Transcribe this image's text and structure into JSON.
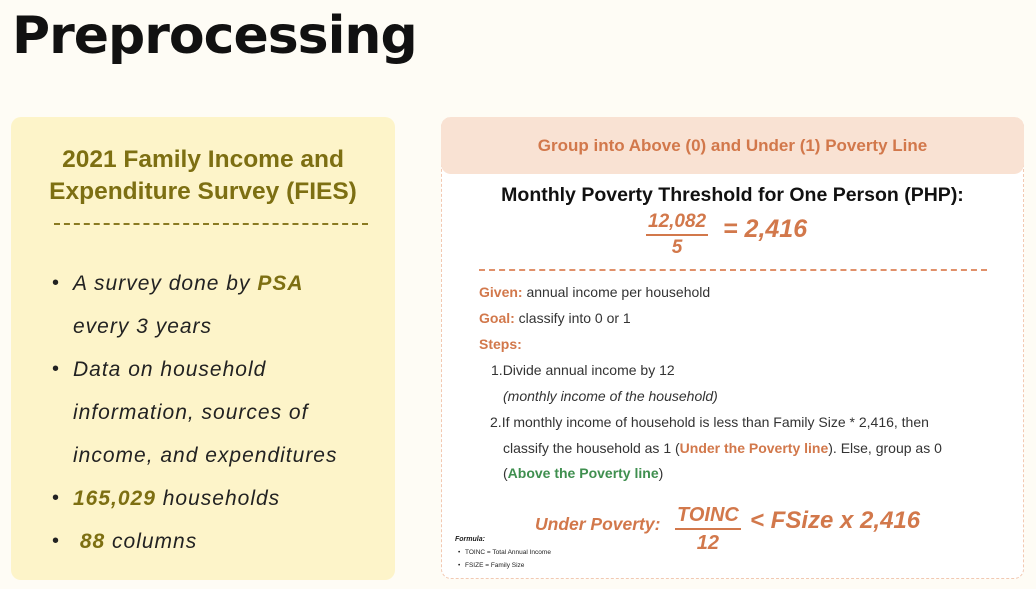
{
  "page": {
    "title": "Preprocessing"
  },
  "left": {
    "title_line1": "2021 Family Income and",
    "title_line2": "Expenditure Survey (FIES)",
    "bullets": [
      {
        "pre": "A survey done by ",
        "highlight": "PSA",
        "line2": "every 3 years"
      },
      {
        "line1": "Data on household",
        "line2": "information, sources of",
        "line3": "income, and expenditures"
      },
      {
        "highlight": "165,029",
        "post": " households"
      },
      {
        "highlight": "88",
        "post": " columns"
      }
    ]
  },
  "right": {
    "header": "Group into Above (0) and Under (1) Poverty Line",
    "threshold_title": "Monthly Poverty Threshold for One Person (PHP):",
    "threshold_numerator": "12,082",
    "threshold_denominator": "5",
    "threshold_result": "= 2,416",
    "given_label": "Given:",
    "given_text": " annual income per household",
    "goal_label": "Goal:",
    "goal_text": " classify into 0 or 1",
    "steps_label": "Steps:",
    "step1_num": "1.",
    "step1_text": "Divide annual income by 12",
    "step1_note": "(monthly income of the household)",
    "step2_num": "2.",
    "step2_text1": "If monthly income of household is less than Family Size * 2,416, then",
    "step2_text2a": "classify the household as 1 (",
    "step2_under": "Under the Poverty line",
    "step2_text2b": "). Else, group as 0",
    "step2_text3a": "(",
    "step2_above": "Above the Poverty line",
    "step2_text3b": ")",
    "under_label": "Under Poverty:",
    "formula_numerator": "TOINC",
    "formula_denominator": "12",
    "formula_result": "< FSize x 2,416",
    "formula_title": "Formula:",
    "formula_items": [
      "TOINC = Total Annual Income",
      "FSIZE = Family Size"
    ]
  },
  "colors": {
    "accent_orange": "#d2784b",
    "accent_olive": "#7d6f12",
    "accent_green": "#3f8f4f",
    "left_bg": "#fdf4c9",
    "header_bg": "#f9e2d3"
  }
}
